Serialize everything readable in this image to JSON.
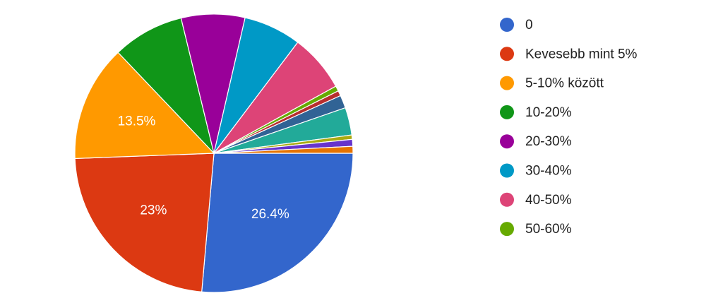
{
  "chart_data": {
    "type": "pie",
    "categories": [
      "0",
      "Kevesebb mint 5%",
      "5-10% között",
      "10-20%",
      "20-30%",
      "30-40%",
      "40-50%",
      "50-60%",
      null,
      null,
      null,
      null,
      null,
      null
    ],
    "values": [
      26.4,
      23,
      13.5,
      8.3,
      7.4,
      6.7,
      6.7,
      0.6,
      0.6,
      1.5,
      3.2,
      0.5,
      0.8,
      0.8
    ],
    "value_labels": [
      "26.4%",
      "23%",
      "13.5%",
      null,
      null,
      null,
      null,
      null,
      null,
      null,
      null,
      null,
      null,
      null
    ],
    "colors": [
      "#3366cc",
      "#dc3912",
      "#ff9900",
      "#109618",
      "#990099",
      "#0099c6",
      "#dd4477",
      "#66aa00",
      "#b82e2e",
      "#316395",
      "#22aa99",
      "#aaaa11",
      "#6633cc",
      "#e67300"
    ],
    "legend": "right"
  }
}
